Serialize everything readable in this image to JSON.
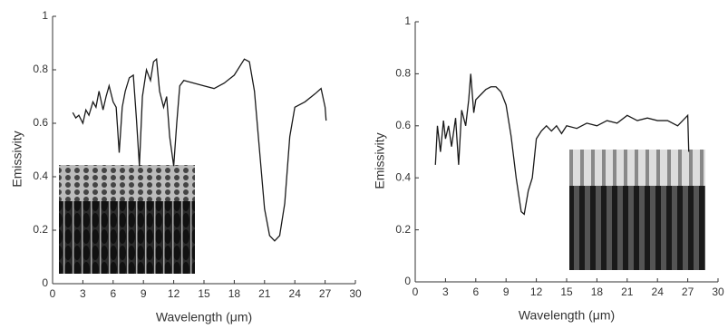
{
  "chart_data": [
    {
      "type": "line",
      "xlabel": "Wavelength (μm)",
      "ylabel": "Emissivity",
      "color": "#1a1a1a",
      "xlim": [
        0,
        30
      ],
      "ylim": [
        0,
        1
      ],
      "xticks": [
        0,
        3,
        6,
        9,
        12,
        15,
        18,
        21,
        24,
        27,
        30
      ],
      "yticks": [
        0,
        0.2,
        0.4,
        0.6,
        0.8,
        1
      ],
      "x": [
        2,
        2.3,
        2.6,
        3,
        3.3,
        3.6,
        4,
        4.3,
        4.6,
        5,
        5.3,
        5.6,
        6,
        6.3,
        6.6,
        6.9,
        7.2,
        7.6,
        8,
        8.3,
        8.6,
        8.9,
        9.3,
        9.7,
        10,
        10.3,
        10.6,
        11,
        11.3,
        11.6,
        12,
        12.3,
        12.6,
        13,
        14,
        15,
        16,
        17,
        18,
        19,
        19.5,
        20,
        20.5,
        21,
        21.5,
        22,
        22.5,
        23,
        23.5,
        24,
        25,
        26,
        26.6,
        27,
        27.1
      ],
      "values": [
        0.64,
        0.62,
        0.63,
        0.6,
        0.65,
        0.63,
        0.68,
        0.66,
        0.72,
        0.65,
        0.7,
        0.74,
        0.68,
        0.66,
        0.49,
        0.66,
        0.72,
        0.77,
        0.78,
        0.62,
        0.44,
        0.7,
        0.8,
        0.76,
        0.83,
        0.84,
        0.72,
        0.66,
        0.7,
        0.55,
        0.44,
        0.6,
        0.74,
        0.76,
        0.75,
        0.74,
        0.73,
        0.75,
        0.78,
        0.84,
        0.83,
        0.72,
        0.5,
        0.28,
        0.18,
        0.16,
        0.18,
        0.3,
        0.55,
        0.66,
        0.68,
        0.71,
        0.73,
        0.66,
        0.61
      ]
    },
    {
      "type": "line",
      "xlabel": "Wavelength (μm)",
      "ylabel": "Emissivity",
      "color": "#1a1a1a",
      "xlim": [
        0,
        30
      ],
      "ylim": [
        0,
        1
      ],
      "xticks": [
        0,
        3,
        6,
        9,
        12,
        15,
        18,
        21,
        24,
        27,
        30
      ],
      "yticks": [
        0,
        0.2,
        0.4,
        0.6,
        0.8,
        1
      ],
      "x": [
        2,
        2.2,
        2.5,
        2.8,
        3,
        3.3,
        3.6,
        4,
        4.3,
        4.6,
        5,
        5.3,
        5.5,
        5.8,
        6,
        6.5,
        7,
        7.5,
        8,
        8.5,
        9,
        9.5,
        10,
        10.5,
        10.8,
        11.2,
        11.6,
        12,
        12.5,
        13,
        13.5,
        14,
        14.5,
        15,
        16,
        17,
        18,
        19,
        20,
        21,
        22,
        23,
        24,
        25,
        26,
        26.5,
        27,
        27.1
      ],
      "values": [
        0.45,
        0.6,
        0.5,
        0.62,
        0.55,
        0.6,
        0.52,
        0.63,
        0.45,
        0.66,
        0.6,
        0.7,
        0.8,
        0.65,
        0.7,
        0.72,
        0.74,
        0.75,
        0.75,
        0.73,
        0.68,
        0.56,
        0.4,
        0.27,
        0.26,
        0.35,
        0.4,
        0.55,
        0.58,
        0.6,
        0.58,
        0.6,
        0.57,
        0.6,
        0.59,
        0.61,
        0.6,
        0.62,
        0.61,
        0.64,
        0.62,
        0.63,
        0.62,
        0.62,
        0.6,
        0.62,
        0.64,
        0.5
      ]
    }
  ]
}
